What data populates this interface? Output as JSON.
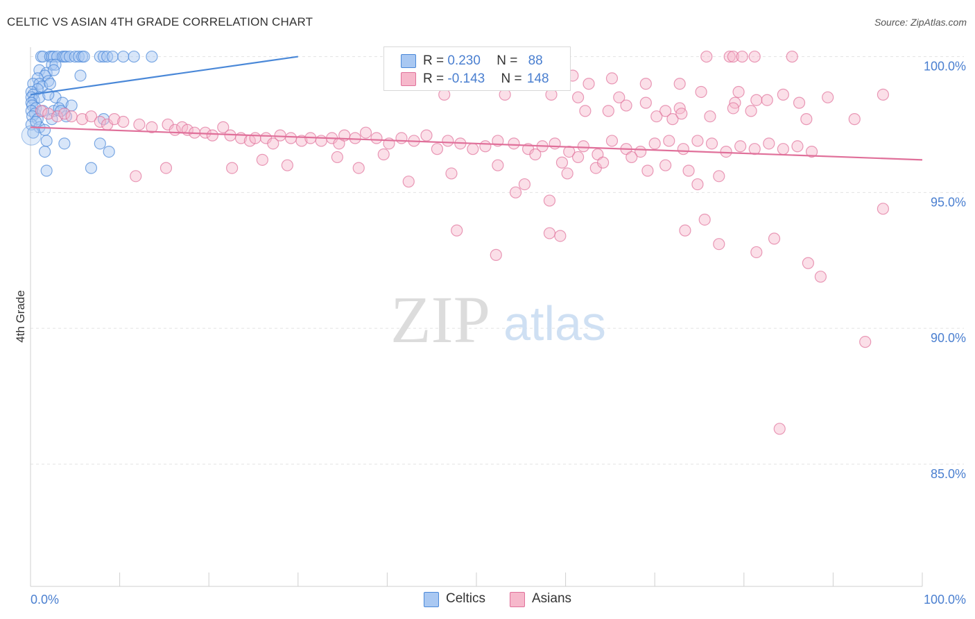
{
  "header": {
    "title": "CELTIC VS ASIAN 4TH GRADE CORRELATION CHART",
    "source": "Source: ZipAtlas.com"
  },
  "watermark": {
    "zip": "ZIP",
    "atlas": "atlas"
  },
  "legend": {
    "rows": [
      {
        "r_label": "R = ",
        "r_value": "0.230",
        "n_label": "N = ",
        "n_value": "88",
        "color": "#a9c8f2"
      },
      {
        "r_label": "R = ",
        "r_value": "-0.143",
        "n_label": "N = ",
        "n_value": "148",
        "color": "#f6b8cb"
      }
    ]
  },
  "bottom_legend": {
    "items": [
      {
        "label": "Celtics",
        "color": "#a9c8f2"
      },
      {
        "label": "Asians",
        "color": "#f6b8cb"
      }
    ]
  },
  "chart_data": {
    "type": "scatter",
    "title": "CELTIC VS ASIAN 4TH GRADE CORRELATION CHART",
    "ylabel": "4th Grade",
    "xlabel": "",
    "xlim": [
      0,
      100
    ],
    "ylim": [
      80.5,
      100.5
    ],
    "x_tick_labels": [
      "0.0%",
      "100.0%"
    ],
    "y_ticks": [
      85,
      90,
      95,
      100
    ],
    "y_tick_labels": [
      "85.0%",
      "90.0%",
      "95.0%",
      "100.0%"
    ],
    "grid": true,
    "series": [
      {
        "name": "Celtics",
        "color": "#4a88d8",
        "fill": "#a9c8f2",
        "trend": {
          "x": [
            0,
            30
          ],
          "y": [
            98.6,
            100.0
          ]
        },
        "points": [
          [
            1.2,
            100
          ],
          [
            1.4,
            100
          ],
          [
            2.2,
            100
          ],
          [
            2.4,
            100
          ],
          [
            2.6,
            100
          ],
          [
            3.0,
            100
          ],
          [
            3.6,
            100
          ],
          [
            3.8,
            100
          ],
          [
            4.0,
            100
          ],
          [
            4.4,
            100
          ],
          [
            5.0,
            100
          ],
          [
            5.4,
            100
          ],
          [
            5.8,
            100
          ],
          [
            6.0,
            100
          ],
          [
            7.8,
            100
          ],
          [
            8.2,
            100
          ],
          [
            8.6,
            100
          ],
          [
            9.2,
            100
          ],
          [
            10.4,
            100
          ],
          [
            11.6,
            100
          ],
          [
            13.6,
            100
          ],
          [
            2.4,
            99.7
          ],
          [
            2.8,
            99.7
          ],
          [
            1.0,
            99.5
          ],
          [
            1.8,
            99.4
          ],
          [
            2.6,
            99.5
          ],
          [
            1.6,
            99.3
          ],
          [
            0.8,
            99.2
          ],
          [
            2.0,
            99.1
          ],
          [
            5.6,
            99.3
          ],
          [
            0.3,
            99.0
          ],
          [
            1.0,
            99.0
          ],
          [
            1.3,
            98.9
          ],
          [
            2.2,
            99.0
          ],
          [
            0.8,
            98.8
          ],
          [
            0.1,
            98.7
          ],
          [
            0.3,
            98.6
          ],
          [
            0.1,
            98.5
          ],
          [
            0.4,
            98.4
          ],
          [
            1.0,
            98.5
          ],
          [
            2.8,
            98.5
          ],
          [
            0.1,
            98.3
          ],
          [
            0.2,
            98.2
          ],
          [
            0.6,
            98.1
          ],
          [
            3.6,
            98.3
          ],
          [
            4.6,
            98.2
          ],
          [
            0.1,
            98.0
          ],
          [
            0.5,
            97.9
          ],
          [
            1.4,
            98.0
          ],
          [
            2.6,
            98.0
          ],
          [
            3.2,
            98.1
          ],
          [
            0.2,
            97.8
          ],
          [
            0.8,
            97.7
          ],
          [
            2.4,
            97.7
          ],
          [
            4.0,
            97.8
          ],
          [
            8.2,
            97.7
          ],
          [
            0.1,
            97.5
          ],
          [
            1.0,
            97.4
          ],
          [
            1.6,
            97.3
          ],
          [
            0.3,
            97.2
          ],
          [
            1.8,
            96.9
          ],
          [
            3.8,
            96.8
          ],
          [
            7.8,
            96.8
          ],
          [
            1.6,
            96.5
          ],
          [
            8.8,
            96.5
          ],
          [
            1.8,
            95.8
          ],
          [
            6.8,
            95.9
          ],
          [
            3.4,
            98.0
          ],
          [
            0.6,
            97.6
          ],
          [
            2.0,
            98.6
          ]
        ]
      },
      {
        "name": "Asians",
        "color": "#e0709a",
        "fill": "#f6b8cb",
        "trend": {
          "x": [
            0,
            100
          ],
          "y": [
            97.4,
            96.2
          ]
        },
        "points": [
          [
            75.8,
            100
          ],
          [
            78.4,
            100
          ],
          [
            78.8,
            100
          ],
          [
            79.8,
            100
          ],
          [
            81.2,
            100
          ],
          [
            85.4,
            100
          ],
          [
            54.4,
            99.1
          ],
          [
            60.8,
            99.3
          ],
          [
            65.2,
            99.2
          ],
          [
            62.6,
            99.0
          ],
          [
            69.0,
            99.0
          ],
          [
            72.8,
            99.0
          ],
          [
            61.4,
            98.5
          ],
          [
            66.0,
            98.5
          ],
          [
            79.0,
            98.3
          ],
          [
            46.4,
            98.6
          ],
          [
            53.2,
            98.6
          ],
          [
            58.4,
            98.6
          ],
          [
            75.2,
            98.7
          ],
          [
            79.4,
            98.7
          ],
          [
            89.4,
            98.5
          ],
          [
            81.4,
            98.4
          ],
          [
            82.6,
            98.4
          ],
          [
            86.2,
            98.3
          ],
          [
            84.4,
            98.6
          ],
          [
            95.6,
            98.6
          ],
          [
            66.8,
            98.2
          ],
          [
            69.0,
            98.3
          ],
          [
            71.2,
            98.0
          ],
          [
            72.8,
            98.1
          ],
          [
            78.8,
            98.1
          ],
          [
            62.2,
            98.0
          ],
          [
            64.8,
            98.0
          ],
          [
            70.2,
            97.8
          ],
          [
            72.0,
            97.7
          ],
          [
            73.0,
            97.9
          ],
          [
            76.2,
            97.8
          ],
          [
            80.8,
            98.0
          ],
          [
            87.0,
            97.7
          ],
          [
            92.4,
            97.7
          ],
          [
            1.2,
            98.0
          ],
          [
            2.0,
            97.9
          ],
          [
            3.0,
            97.8
          ],
          [
            3.8,
            97.9
          ],
          [
            4.6,
            97.8
          ],
          [
            5.8,
            97.7
          ],
          [
            6.8,
            97.8
          ],
          [
            7.8,
            97.6
          ],
          [
            8.6,
            97.5
          ],
          [
            9.4,
            97.7
          ],
          [
            10.4,
            97.6
          ],
          [
            12.2,
            97.5
          ],
          [
            13.6,
            97.4
          ],
          [
            15.4,
            97.5
          ],
          [
            16.2,
            97.3
          ],
          [
            17.0,
            97.4
          ],
          [
            17.6,
            97.3
          ],
          [
            18.4,
            97.2
          ],
          [
            19.6,
            97.2
          ],
          [
            20.4,
            97.1
          ],
          [
            21.6,
            97.4
          ],
          [
            22.4,
            97.1
          ],
          [
            23.6,
            97.0
          ],
          [
            24.6,
            96.9
          ],
          [
            25.2,
            97.0
          ],
          [
            26.4,
            97.0
          ],
          [
            27.2,
            96.8
          ],
          [
            28.0,
            97.1
          ],
          [
            29.2,
            97.0
          ],
          [
            30.4,
            96.9
          ],
          [
            31.4,
            97.0
          ],
          [
            32.6,
            96.9
          ],
          [
            33.8,
            97.0
          ],
          [
            34.6,
            96.8
          ],
          [
            35.2,
            97.1
          ],
          [
            36.4,
            97.0
          ],
          [
            37.6,
            97.2
          ],
          [
            38.8,
            97.0
          ],
          [
            40.2,
            96.8
          ],
          [
            41.6,
            97.0
          ],
          [
            43.0,
            96.9
          ],
          [
            44.4,
            97.1
          ],
          [
            45.6,
            96.6
          ],
          [
            46.8,
            96.9
          ],
          [
            48.2,
            96.8
          ],
          [
            49.6,
            96.6
          ],
          [
            51.0,
            96.7
          ],
          [
            52.4,
            96.9
          ],
          [
            54.2,
            96.8
          ],
          [
            55.8,
            96.6
          ],
          [
            57.4,
            96.7
          ],
          [
            58.8,
            96.8
          ],
          [
            60.4,
            96.5
          ],
          [
            62.0,
            96.7
          ],
          [
            63.6,
            96.4
          ],
          [
            65.2,
            96.9
          ],
          [
            66.8,
            96.6
          ],
          [
            68.4,
            96.5
          ],
          [
            70.0,
            96.8
          ],
          [
            71.6,
            96.9
          ],
          [
            73.2,
            96.6
          ],
          [
            74.8,
            96.9
          ],
          [
            76.4,
            96.8
          ],
          [
            78.0,
            96.5
          ],
          [
            79.6,
            96.7
          ],
          [
            81.2,
            96.6
          ],
          [
            82.8,
            96.8
          ],
          [
            84.4,
            96.6
          ],
          [
            86.0,
            96.7
          ],
          [
            87.6,
            96.5
          ],
          [
            42.4,
            95.4
          ],
          [
            54.4,
            95.0
          ],
          [
            55.4,
            95.3
          ],
          [
            58.2,
            94.7
          ],
          [
            74.8,
            95.3
          ],
          [
            60.2,
            95.7
          ],
          [
            63.4,
            95.9
          ],
          [
            69.2,
            95.8
          ],
          [
            11.8,
            95.6
          ],
          [
            15.2,
            95.9
          ],
          [
            22.6,
            95.9
          ],
          [
            26.0,
            96.2
          ],
          [
            28.8,
            96.0
          ],
          [
            34.4,
            96.3
          ],
          [
            36.8,
            95.9
          ],
          [
            39.6,
            96.4
          ],
          [
            47.2,
            95.7
          ],
          [
            52.4,
            96.0
          ],
          [
            56.6,
            96.4
          ],
          [
            59.6,
            96.1
          ],
          [
            61.4,
            96.3
          ],
          [
            64.2,
            96.1
          ],
          [
            67.4,
            96.3
          ],
          [
            71.2,
            96.0
          ],
          [
            73.8,
            95.8
          ],
          [
            77.2,
            95.6
          ],
          [
            47.8,
            93.6
          ],
          [
            52.2,
            92.7
          ],
          [
            58.2,
            93.5
          ],
          [
            59.4,
            93.4
          ],
          [
            73.4,
            93.6
          ],
          [
            75.6,
            94.0
          ],
          [
            77.2,
            93.1
          ],
          [
            81.4,
            92.8
          ],
          [
            83.4,
            93.3
          ],
          [
            87.2,
            92.4
          ],
          [
            88.6,
            91.9
          ],
          [
            93.6,
            89.5
          ],
          [
            84.0,
            86.3
          ],
          [
            95.6,
            94.4
          ]
        ]
      }
    ]
  }
}
